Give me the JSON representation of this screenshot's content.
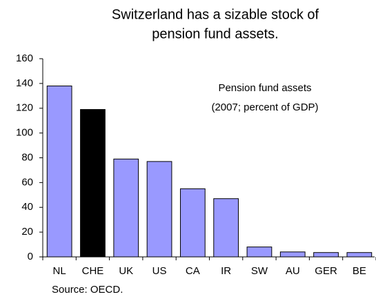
{
  "chart_data": {
    "type": "bar",
    "title": [
      "Switzerland has a sizable stock of",
      "pension fund assets."
    ],
    "annotation": [
      "Pension fund assets",
      "(2007; percent of GDP)"
    ],
    "source": "Source: OECD.",
    "categories": [
      "NL",
      "CHE",
      "UK",
      "US",
      "CA",
      "IR",
      "SW",
      "AU",
      "GER",
      "BE"
    ],
    "values": [
      138,
      119,
      79,
      77,
      55,
      47,
      8,
      4,
      3.5,
      3.5
    ],
    "colors": [
      "#9999ff",
      "#000000",
      "#9999ff",
      "#9999ff",
      "#9999ff",
      "#9999ff",
      "#9999ff",
      "#9999ff",
      "#9999ff",
      "#9999ff"
    ],
    "ylim": [
      0,
      160
    ],
    "yticks": [
      0,
      20,
      40,
      60,
      80,
      100,
      120,
      140,
      160
    ],
    "grid": false
  }
}
